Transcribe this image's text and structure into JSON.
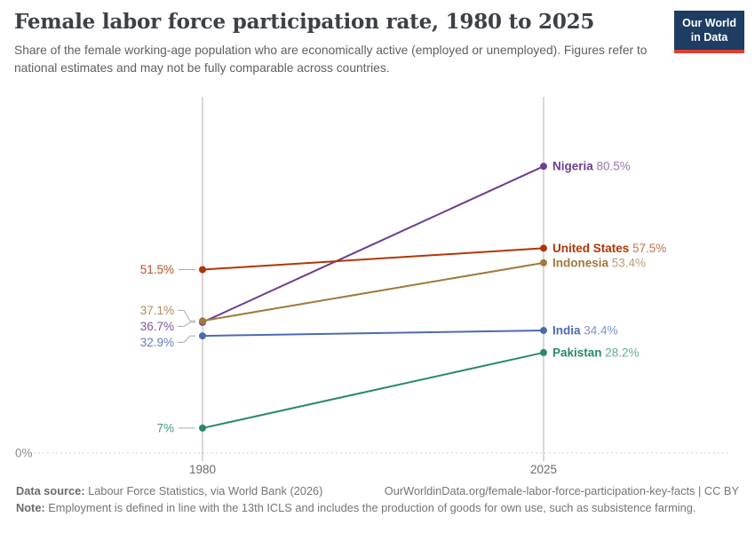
{
  "header": {
    "title": "Female labor force participation rate, 1980 to 2025",
    "subtitle": "Share of the female working-age population who are economically active (employed or unemployed). Figures refer to national estimates and may not be fully comparable across countries.",
    "logo": {
      "line1": "Our World",
      "line2": "in Data"
    }
  },
  "chart_data": {
    "type": "line",
    "subtype": "slope-chart",
    "title": "Female labor force participation rate, 1980 to 2025",
    "x": [
      1980,
      2025
    ],
    "x_tick_labels": [
      "1980",
      "2025"
    ],
    "ylabel": "",
    "ylim": [
      0,
      100
    ],
    "baseline_label": "0%",
    "grid": "baseline-dotted-only",
    "legend_position": "end-of-line-labels",
    "series": [
      {
        "name": "Nigeria",
        "values": [
          36.7,
          80.5
        ],
        "start_label": "36.7%",
        "end_label": "80.5%",
        "color": "#6d3e91"
      },
      {
        "name": "United States",
        "values": [
          51.5,
          57.5
        ],
        "start_label": "51.5%",
        "end_label": "57.5%",
        "color": "#b13507"
      },
      {
        "name": "Indonesia",
        "values": [
          37.1,
          53.4
        ],
        "start_label": "37.1%",
        "end_label": "53.4%",
        "color": "#a2793d"
      },
      {
        "name": "India",
        "values": [
          32.9,
          34.4
        ],
        "start_label": "32.9%",
        "end_label": "34.4%",
        "color": "#4c6bae"
      },
      {
        "name": "Pakistan",
        "values": [
          7,
          28.2
        ],
        "start_label": "7%",
        "end_label": "28.2%",
        "color": "#2a8a68"
      }
    ]
  },
  "footer": {
    "data_source_label": "Data source:",
    "data_source_text": " Labour Force Statistics, via World Bank (2026)",
    "url_text": "OurWorldinData.org/female-labor-force-participation-key-facts | CC BY",
    "note_label": "Note:",
    "note_text": " Employment is defined in line with the 13th ICLS and includes the production of goods for own use, such as subsistence farming."
  },
  "colors": {
    "brand_navy": "#1d3d63",
    "brand_red": "#dc3e32",
    "axis_line": "#c2c2c2",
    "grid_dotted": "#d2d2d2",
    "leader_line": "#a9a9a9",
    "tick_text": "#6b6b6b",
    "baseline_text": "#8c8c8c"
  }
}
